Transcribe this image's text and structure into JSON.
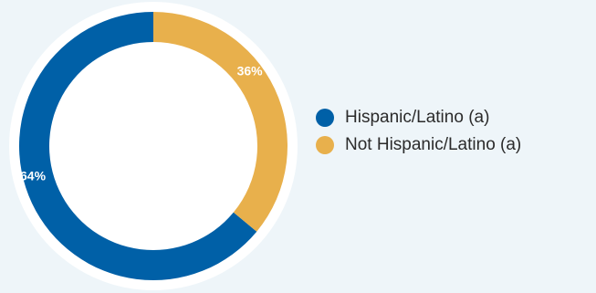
{
  "chart_data": {
    "type": "pie",
    "title": "",
    "categories": [
      "Hispanic/Latino (a)",
      "Not Hispanic/Latino (a)"
    ],
    "values": [
      64,
      36
    ],
    "value_labels": [
      "64%",
      "36%"
    ],
    "colors": [
      "#0060a7",
      "#e8b04c"
    ],
    "donut": true,
    "legend_position": "right"
  },
  "legend": [
    {
      "label": "Hispanic/Latino (a)",
      "color": "#0060a7"
    },
    {
      "label": "Not Hispanic/Latino (a)",
      "color": "#e8b04c"
    }
  ]
}
